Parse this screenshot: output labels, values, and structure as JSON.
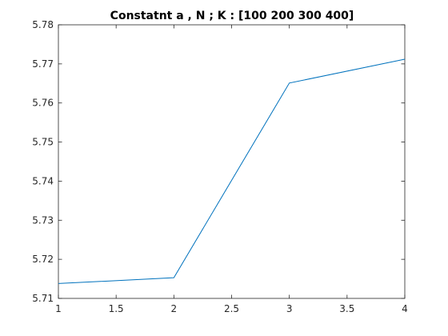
{
  "chart_data": {
    "type": "line",
    "title": "Constatnt a , N ; K :  [100 200 300 400]",
    "xlabel": "",
    "ylabel": "",
    "x": [
      1,
      2,
      3,
      4
    ],
    "series": [
      {
        "values": [
          5.7138,
          5.7153,
          5.7651,
          5.7712
        ]
      }
    ],
    "xlim": [
      1,
      4
    ],
    "ylim": [
      5.71,
      5.78
    ],
    "xticks": [
      1,
      1.5,
      2,
      2.5,
      3,
      3.5,
      4
    ],
    "xtick_labels": [
      "1",
      "1.5",
      "2",
      "2.5",
      "3",
      "3.5",
      "4"
    ],
    "yticks": [
      5.71,
      5.72,
      5.73,
      5.74,
      5.75,
      5.76,
      5.77,
      5.78
    ],
    "ytick_labels": [
      "5.71",
      "5.72",
      "5.73",
      "5.74",
      "5.75",
      "5.76",
      "5.77",
      "5.78"
    ],
    "grid": false,
    "colors": {
      "series": "#0072bd",
      "axes": "#262626",
      "background": "#ffffff"
    }
  }
}
